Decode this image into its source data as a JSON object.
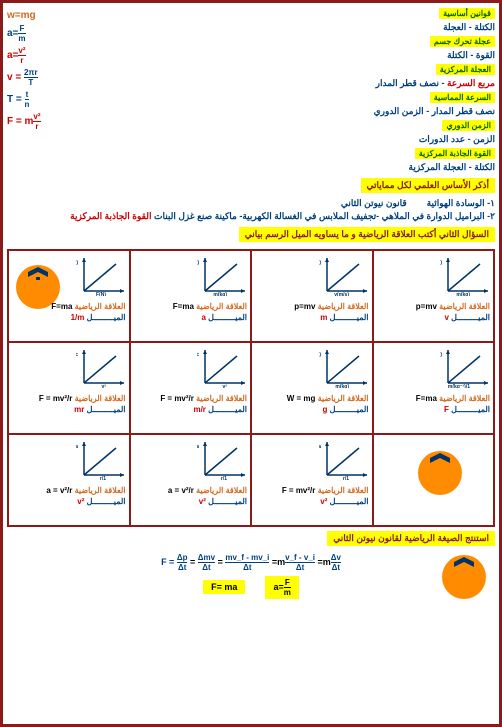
{
  "labels": {
    "l1": "قوانين أساسية",
    "l2": "الكتلة - العجلة",
    "l3": "عجلة تحرك جسم",
    "l4": "القوة - الكتلة",
    "l5": "العجلة المركزية",
    "l6": "مربع السرعة",
    "l7": "نصف قطر المدار",
    "l8": "السرعة المماسية",
    "l9": "نصف قطر المدار",
    "l10": "الزمن الدوري",
    "l11": "الزمن الدوري",
    "l12": "الزمن",
    "l13": "عدد الدورات",
    "l14": "القوة الجاذبة المركزية",
    "l15": "الكتلة",
    "l16": "العجلة المركزية",
    "scienceBasis": "أذكر الأساس العلمي لكل مماياتي",
    "q1": "١- الوسادة الهوائية",
    "q1b": "قانون نيوتن الثاني",
    "q2": "٢- البراميل الدوارة في الملاهي -تجفيف الملابس في الغسالة الكهربية- ماكينة صنع غزل البنات",
    "q2ans": "القوة الجاذبة المركزية",
    "q3": "السؤال الثاني   أكتب العلاقة الرياضية و ما يساويه الميل الرسم بياني",
    "rel": "العلاقة الرياضية",
    "mil": "الميـــــــــل",
    "bottomTitle": "استنتج الصيغة الرياضية لقانون نيوتن الثاني"
  },
  "formulas": {
    "f1": "w=mg",
    "f2a": "a=",
    "f2n": "F",
    "f2d": "m",
    "f3a": "a=",
    "f3n": "v²",
    "f3d": "r",
    "f4a": "v =",
    "f4n": "2πr",
    "f4d": "T",
    "f5a": "T =",
    "f5n": "t",
    "f5d": "n",
    "f6a": "F =  m",
    "f6n": "v²",
    "f6d": "r",
    "deriv": "F  =",
    "d1n": "Δp",
    "d1d": "Δt",
    "d2n": "Δmv",
    "d2d": "Δt",
    "d3n": "mv_f - mv_i",
    "d3d": "Δt",
    "d4": "=m",
    "d4n": "v_f - v_i",
    "d4d": "Δt",
    "d5": "=m",
    "d5n": "Δv",
    "d5d": "Δt",
    "box1": "F=  ma",
    "box2": "a=",
    "box2n": "F",
    "box2d": "m"
  },
  "cells": [
    {
      "yl": "P(kg.m/s)",
      "xl": "m(kg)",
      "eq": "p=mv",
      "slope": "v"
    },
    {
      "yl": "P(kg.m/s)",
      "xl": "v(m/s)",
      "eq": "p=mv",
      "slope": "m"
    },
    {
      "yl": "F(N)",
      "xl": "m(kg)",
      "eq": "F=ma",
      "slope": "a"
    },
    {
      "yl": "a(m/s²)",
      "xl": "F(N)",
      "eq": "F=ma",
      "slope": "1/m"
    },
    {
      "yl": "a(m/s²)",
      "xl": "1/m(kg⁻¹)",
      "eq": "F=ma",
      "slope": "F"
    },
    {
      "yl": "w(N)",
      "xl": "m(kg)",
      "eq": "W = mg",
      "slope": "g"
    },
    {
      "yl": "F_c",
      "xl": "v²",
      "eq": "F = mv²/r",
      "slope": "m/r"
    },
    {
      "yl": "F_c",
      "xl": "v²",
      "eq": "F = mv²/r",
      "slope": "mr"
    },
    {
      "yl": "",
      "xl": "",
      "eq": "",
      "slope": ""
    },
    {
      "yl": "a",
      "xl": "1/r",
      "eq": "F = mv²/r",
      "slope": "v²"
    },
    {
      "yl": "a",
      "xl": "1/r",
      "eq": "a = v²/r",
      "slope": "v²"
    },
    {
      "yl": "a",
      "xl": "1/r",
      "eq": "a = v²/r",
      "slope": "v²"
    }
  ]
}
